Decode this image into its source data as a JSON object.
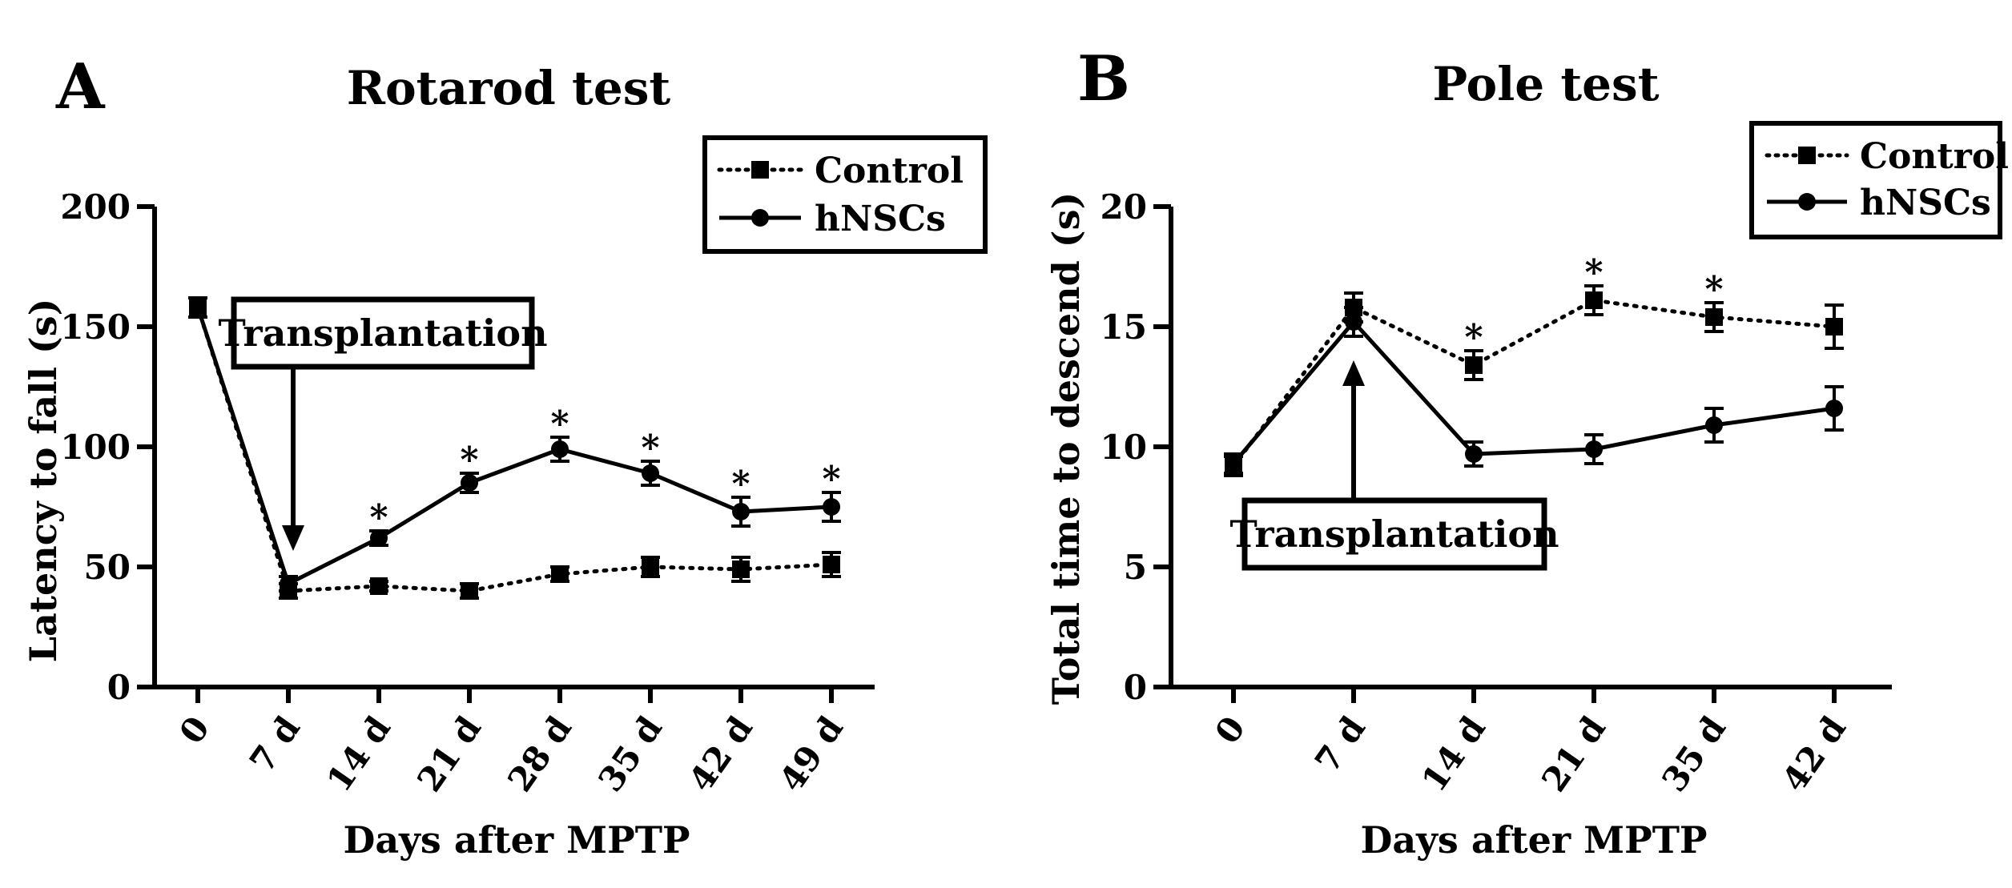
{
  "chart_data": [
    {
      "type": "line",
      "panel_letter": "A",
      "title": "Rotarod test",
      "xlabel": "Days after MPTP",
      "ylabel": "Latency to fall (s)",
      "categories": [
        "0",
        "7 d",
        "14 d",
        "21 d",
        "28 d",
        "35 d",
        "42 d",
        "49 d"
      ],
      "ylim": [
        0,
        200
      ],
      "yticks": [
        0,
        50,
        100,
        150,
        200
      ],
      "series": [
        {
          "name": "Control",
          "style": "dotted",
          "marker": "square",
          "values": [
            158,
            40,
            42,
            40,
            47,
            50,
            49,
            51
          ],
          "errors": [
            4,
            3,
            2,
            3,
            3,
            4,
            5,
            5
          ]
        },
        {
          "name": "hNSCs",
          "style": "solid",
          "marker": "circle",
          "values": [
            158,
            43,
            62,
            85,
            99,
            89,
            73,
            75
          ],
          "errors": [
            4,
            3,
            3,
            4,
            5,
            5,
            6,
            6
          ]
        }
      ],
      "significance_marker": "*",
      "significant_categories": [
        "14 d",
        "21 d",
        "28 d",
        "35 d",
        "42 d",
        "49 d"
      ],
      "annotation": {
        "text": "Transplantation",
        "category": "7 d"
      },
      "legend_placement": "top-right",
      "grid": false
    },
    {
      "type": "line",
      "panel_letter": "B",
      "title": "Pole test",
      "xlabel": "Days after MPTP",
      "ylabel": "Total time to descend (s)",
      "categories": [
        "0",
        "7 d",
        "14 d",
        "21 d",
        "35 d",
        "42 d"
      ],
      "ylim": [
        0,
        20
      ],
      "yticks": [
        0,
        5,
        10,
        15,
        20
      ],
      "series": [
        {
          "name": "Control",
          "style": "dotted",
          "marker": "square",
          "values": [
            9.2,
            15.8,
            13.4,
            16.1,
            15.4,
            15.0
          ],
          "errors": [
            0.4,
            0.6,
            0.6,
            0.6,
            0.6,
            0.9
          ]
        },
        {
          "name": "hNSCs",
          "style": "solid",
          "marker": "circle",
          "values": [
            9.3,
            15.2,
            9.7,
            9.9,
            10.9,
            11.6
          ],
          "errors": [
            0.4,
            0.6,
            0.5,
            0.6,
            0.7,
            0.9
          ]
        }
      ],
      "significance_marker": "*",
      "significant_categories": [
        "14 d",
        "21 d",
        "35 d"
      ],
      "annotation": {
        "text": "Transplantation",
        "category": "7 d"
      },
      "legend_placement": "top-right",
      "grid": false
    }
  ]
}
